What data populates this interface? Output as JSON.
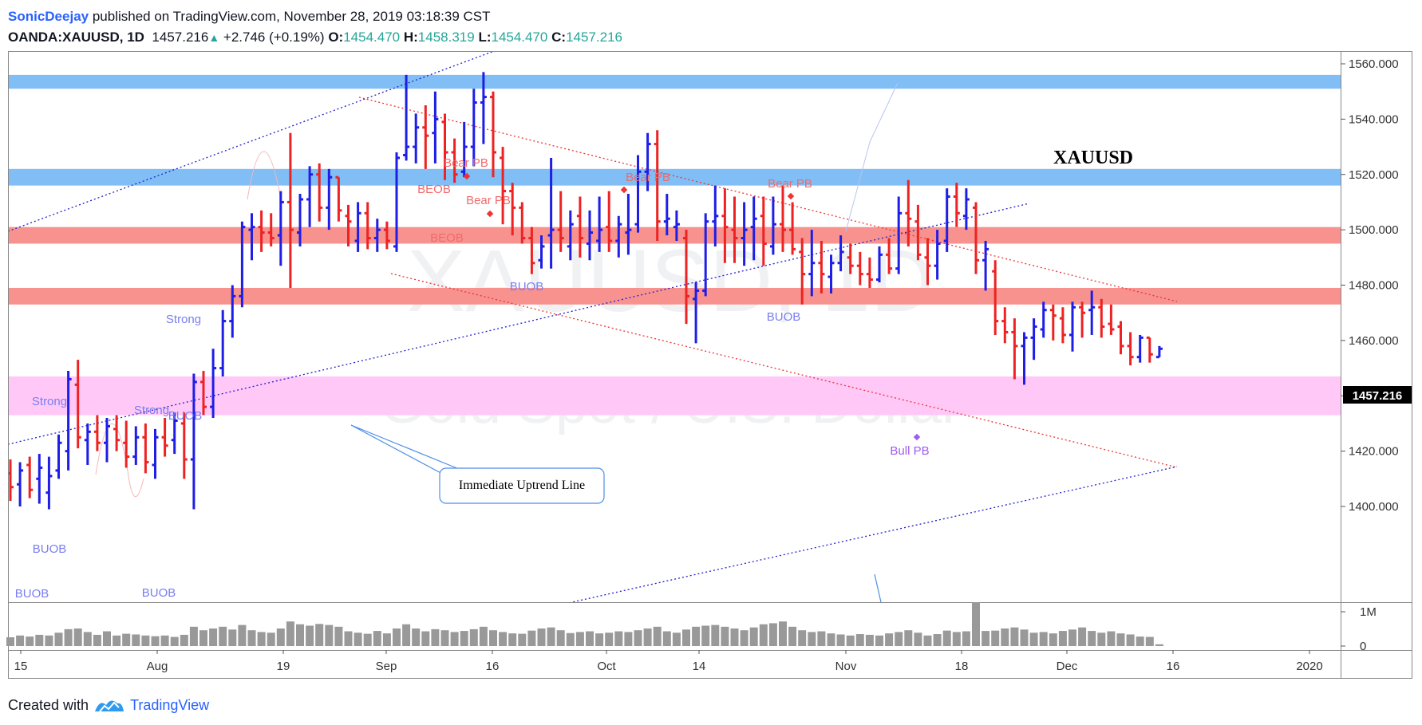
{
  "header": {
    "author": "SonicDeejay",
    "published_text": " published on TradingView.com, November 28, 2019 03:18:39 CST",
    "symbol": "OANDA:XAUUSD, 1D",
    "last": "1457.216",
    "change": "+2.746 (+0.19%)",
    "o_label": "O:",
    "o": "1454.470",
    "h_label": "H:",
    "h": "1458.319",
    "l_label": "L:",
    "l": "1454.470",
    "c_label": "C:",
    "c": "1457.216"
  },
  "footer": {
    "created_with": "Created with",
    "brand": "TradingView"
  },
  "watermark": {
    "symbol": "XAUUSD, 1D",
    "name": "Gold Spot / U.S. Dollar"
  },
  "title_label": "XAUUSD",
  "price_tag": "1457.216",
  "colors": {
    "up": "#1e1ee6",
    "down": "#ee2222",
    "blue_zone": "#80bef5",
    "red_zone": "#f7928f",
    "pink_zone": "#ffc8f7",
    "volume": "#999999"
  },
  "chart_data": {
    "type": "ohlc",
    "ylim": [
      1392,
      1567
    ],
    "yticks": [
      "1560.000",
      "1540.000",
      "1520.000",
      "1500.000",
      "1480.000",
      "1460.000",
      "1440.000",
      "1420.000",
      "1400.000"
    ],
    "xticks": [
      "15",
      "Aug",
      "19",
      "Sep",
      "16",
      "Oct",
      "14",
      "Nov",
      "18",
      "Dec",
      "16",
      "2020"
    ],
    "volume_ticks": [
      "1M",
      "0"
    ],
    "zones": [
      {
        "color": "blue",
        "from": 1551,
        "to": 1556
      },
      {
        "color": "blue",
        "from": 1516,
        "to": 1522
      },
      {
        "color": "red",
        "from": 1495,
        "to": 1501
      },
      {
        "color": "red",
        "from": 1473,
        "to": 1479
      },
      {
        "color": "pink",
        "from": 1433,
        "to": 1447
      }
    ],
    "annotations": [
      {
        "text": "Strong",
        "color": "#7a7ef0"
      },
      {
        "text": "Strong",
        "color": "#7a7ef0"
      },
      {
        "text": "Strong",
        "color": "#7a7ef0"
      },
      {
        "text": "BUOB",
        "color": "#7a7ef0"
      },
      {
        "text": "BUOB",
        "color": "#7a7ef0"
      },
      {
        "text": "BUOB",
        "color": "#7a7ef0"
      },
      {
        "text": "BUOB",
        "color": "#7a7ef0"
      },
      {
        "text": "BUOB",
        "color": "#7a7ef0"
      },
      {
        "text": "BUOB",
        "color": "#7a7ef0"
      },
      {
        "text": "BEOB",
        "color": "#f06a6a"
      },
      {
        "text": "BEOB",
        "color": "#f06a6a"
      },
      {
        "text": "Bear PB",
        "color": "#f06a6a"
      },
      {
        "text": "Bear PB",
        "color": "#f06a6a"
      },
      {
        "text": "Bear PB",
        "color": "#f06a6a"
      },
      {
        "text": "Bear PB",
        "color": "#f06a6a"
      },
      {
        "text": "Bull PB",
        "color": "#a05cf0"
      }
    ],
    "callout": "Immediate Uptrend Line",
    "bars": [
      {
        "o": 1412,
        "h": 1417,
        "l": 1402,
        "c": 1407,
        "v": 0.25
      },
      {
        "o": 1408,
        "h": 1416,
        "l": 1400,
        "c": 1413,
        "v": 0.3
      },
      {
        "o": 1415,
        "h": 1418,
        "l": 1403,
        "c": 1406,
        "v": 0.27
      },
      {
        "o": 1410,
        "h": 1419,
        "l": 1401,
        "c": 1414,
        "v": 0.32
      },
      {
        "o": 1405,
        "h": 1418,
        "l": 1399,
        "c": 1411,
        "v": 0.3
      },
      {
        "o": 1413,
        "h": 1426,
        "l": 1410,
        "c": 1423,
        "v": 0.38
      },
      {
        "o": 1420,
        "h": 1449,
        "l": 1413,
        "c": 1446,
        "v": 0.48
      },
      {
        "o": 1444,
        "h": 1453,
        "l": 1421,
        "c": 1425,
        "v": 0.5
      },
      {
        "o": 1424,
        "h": 1430,
        "l": 1415,
        "c": 1427,
        "v": 0.4
      },
      {
        "o": 1427,
        "h": 1433,
        "l": 1420,
        "c": 1423,
        "v": 0.32
      },
      {
        "o": 1423,
        "h": 1432,
        "l": 1416,
        "c": 1429,
        "v": 0.42
      },
      {
        "o": 1428,
        "h": 1433,
        "l": 1420,
        "c": 1424,
        "v": 0.3
      },
      {
        "o": 1423,
        "h": 1431,
        "l": 1414,
        "c": 1418,
        "v": 0.35
      },
      {
        "o": 1418,
        "h": 1429,
        "l": 1415,
        "c": 1425,
        "v": 0.33
      },
      {
        "o": 1425,
        "h": 1430,
        "l": 1412,
        "c": 1416,
        "v": 0.3
      },
      {
        "o": 1415,
        "h": 1428,
        "l": 1410,
        "c": 1425,
        "v": 0.28
      },
      {
        "o": 1425,
        "h": 1432,
        "l": 1418,
        "c": 1422,
        "v": 0.3
      },
      {
        "o": 1424,
        "h": 1434,
        "l": 1419,
        "c": 1431,
        "v": 0.26
      },
      {
        "o": 1430,
        "h": 1434,
        "l": 1410,
        "c": 1417,
        "v": 0.32
      },
      {
        "o": 1417,
        "h": 1448,
        "l": 1399,
        "c": 1445,
        "v": 0.55
      },
      {
        "o": 1445,
        "h": 1449,
        "l": 1433,
        "c": 1436,
        "v": 0.45
      },
      {
        "o": 1436,
        "h": 1457,
        "l": 1432,
        "c": 1450,
        "v": 0.5
      },
      {
        "o": 1450,
        "h": 1471,
        "l": 1447,
        "c": 1467,
        "v": 0.55
      },
      {
        "o": 1467,
        "h": 1480,
        "l": 1461,
        "c": 1476,
        "v": 0.47
      },
      {
        "o": 1476,
        "h": 1503,
        "l": 1472,
        "c": 1501,
        "v": 0.6
      },
      {
        "o": 1500,
        "h": 1506,
        "l": 1489,
        "c": 1501,
        "v": 0.45
      },
      {
        "o": 1501,
        "h": 1507,
        "l": 1492,
        "c": 1499,
        "v": 0.4
      },
      {
        "o": 1499,
        "h": 1506,
        "l": 1494,
        "c": 1497,
        "v": 0.38
      },
      {
        "o": 1498,
        "h": 1514,
        "l": 1487,
        "c": 1510,
        "v": 0.5
      },
      {
        "o": 1510,
        "h": 1535,
        "l": 1479,
        "c": 1500,
        "v": 0.7
      },
      {
        "o": 1499,
        "h": 1513,
        "l": 1494,
        "c": 1511,
        "v": 0.62
      },
      {
        "o": 1511,
        "h": 1523,
        "l": 1501,
        "c": 1520,
        "v": 0.58
      },
      {
        "o": 1520,
        "h": 1524,
        "l": 1503,
        "c": 1508,
        "v": 0.63
      },
      {
        "o": 1508,
        "h": 1522,
        "l": 1500,
        "c": 1519,
        "v": 0.6
      },
      {
        "o": 1519,
        "h": 1519,
        "l": 1503,
        "c": 1507,
        "v": 0.55
      },
      {
        "o": 1505,
        "h": 1509,
        "l": 1494,
        "c": 1503,
        "v": 0.42
      },
      {
        "o": 1496,
        "h": 1510,
        "l": 1492,
        "c": 1506,
        "v": 0.38
      },
      {
        "o": 1506,
        "h": 1510,
        "l": 1493,
        "c": 1497,
        "v": 0.35
      },
      {
        "o": 1497,
        "h": 1504,
        "l": 1492,
        "c": 1500,
        "v": 0.43
      },
      {
        "o": 1500,
        "h": 1503,
        "l": 1493,
        "c": 1496,
        "v": 0.36
      },
      {
        "o": 1494,
        "h": 1528,
        "l": 1492,
        "c": 1526,
        "v": 0.5
      },
      {
        "o": 1527,
        "h": 1556,
        "l": 1525,
        "c": 1530,
        "v": 0.62
      },
      {
        "o": 1530,
        "h": 1542,
        "l": 1524,
        "c": 1537,
        "v": 0.5
      },
      {
        "o": 1537,
        "h": 1545,
        "l": 1522,
        "c": 1534,
        "v": 0.42
      },
      {
        "o": 1535,
        "h": 1550,
        "l": 1524,
        "c": 1540,
        "v": 0.48
      },
      {
        "o": 1539,
        "h": 1542,
        "l": 1518,
        "c": 1528,
        "v": 0.45
      },
      {
        "o": 1528,
        "h": 1533,
        "l": 1517,
        "c": 1520,
        "v": 0.4
      },
      {
        "o": 1521,
        "h": 1539,
        "l": 1519,
        "c": 1530,
        "v": 0.43
      },
      {
        "o": 1530,
        "h": 1551,
        "l": 1523,
        "c": 1546,
        "v": 0.48
      },
      {
        "o": 1546,
        "h": 1557,
        "l": 1531,
        "c": 1548,
        "v": 0.55
      },
      {
        "o": 1548,
        "h": 1550,
        "l": 1519,
        "c": 1528,
        "v": 0.45
      },
      {
        "o": 1526,
        "h": 1530,
        "l": 1502,
        "c": 1514,
        "v": 0.4
      },
      {
        "o": 1514,
        "h": 1517,
        "l": 1498,
        "c": 1508,
        "v": 0.36
      },
      {
        "o": 1508,
        "h": 1510,
        "l": 1495,
        "c": 1497,
        "v": 0.35
      },
      {
        "o": 1497,
        "h": 1501,
        "l": 1484,
        "c": 1488,
        "v": 0.44
      },
      {
        "o": 1489,
        "h": 1498,
        "l": 1486,
        "c": 1494,
        "v": 0.5
      },
      {
        "o": 1498,
        "h": 1526,
        "l": 1486,
        "c": 1500,
        "v": 0.53
      },
      {
        "o": 1500,
        "h": 1514,
        "l": 1492,
        "c": 1497,
        "v": 0.45
      },
      {
        "o": 1494,
        "h": 1507,
        "l": 1489,
        "c": 1502,
        "v": 0.37
      },
      {
        "o": 1505,
        "h": 1512,
        "l": 1490,
        "c": 1497,
        "v": 0.4
      },
      {
        "o": 1495,
        "h": 1507,
        "l": 1489,
        "c": 1499,
        "v": 0.42
      },
      {
        "o": 1496,
        "h": 1512,
        "l": 1492,
        "c": 1500,
        "v": 0.36
      },
      {
        "o": 1501,
        "h": 1514,
        "l": 1492,
        "c": 1496,
        "v": 0.38
      },
      {
        "o": 1496,
        "h": 1505,
        "l": 1490,
        "c": 1502,
        "v": 0.42
      },
      {
        "o": 1499,
        "h": 1513,
        "l": 1491,
        "c": 1500,
        "v": 0.4
      },
      {
        "o": 1502,
        "h": 1527,
        "l": 1499,
        "c": 1521,
        "v": 0.45
      },
      {
        "o": 1521,
        "h": 1535,
        "l": 1514,
        "c": 1531,
        "v": 0.5
      },
      {
        "o": 1531,
        "h": 1536,
        "l": 1496,
        "c": 1503,
        "v": 0.55
      },
      {
        "o": 1503,
        "h": 1513,
        "l": 1498,
        "c": 1504,
        "v": 0.42
      },
      {
        "o": 1501,
        "h": 1507,
        "l": 1496,
        "c": 1502,
        "v": 0.38
      },
      {
        "o": 1497,
        "h": 1500,
        "l": 1466,
        "c": 1476,
        "v": 0.47
      },
      {
        "o": 1475,
        "h": 1481,
        "l": 1459,
        "c": 1478,
        "v": 0.55
      },
      {
        "o": 1478,
        "h": 1506,
        "l": 1476,
        "c": 1503,
        "v": 0.58
      },
      {
        "o": 1503,
        "h": 1516,
        "l": 1494,
        "c": 1505,
        "v": 0.6
      },
      {
        "o": 1505,
        "h": 1515,
        "l": 1488,
        "c": 1501,
        "v": 0.55
      },
      {
        "o": 1500,
        "h": 1512,
        "l": 1488,
        "c": 1497,
        "v": 0.5
      },
      {
        "o": 1497,
        "h": 1510,
        "l": 1487,
        "c": 1500,
        "v": 0.45
      },
      {
        "o": 1501,
        "h": 1512,
        "l": 1489,
        "c": 1504,
        "v": 0.53
      },
      {
        "o": 1505,
        "h": 1512,
        "l": 1487,
        "c": 1495,
        "v": 0.62
      },
      {
        "o": 1494,
        "h": 1512,
        "l": 1491,
        "c": 1502,
        "v": 0.65
      },
      {
        "o": 1502,
        "h": 1516,
        "l": 1492,
        "c": 1500,
        "v": 0.7
      },
      {
        "o": 1500,
        "h": 1510,
        "l": 1491,
        "c": 1493,
        "v": 0.55
      },
      {
        "o": 1492,
        "h": 1497,
        "l": 1473,
        "c": 1484,
        "v": 0.45
      },
      {
        "o": 1484,
        "h": 1500,
        "l": 1476,
        "c": 1488,
        "v": 0.4
      },
      {
        "o": 1488,
        "h": 1496,
        "l": 1477,
        "c": 1484,
        "v": 0.42
      },
      {
        "o": 1483,
        "h": 1491,
        "l": 1477,
        "c": 1488,
        "v": 0.36
      },
      {
        "o": 1488,
        "h": 1498,
        "l": 1485,
        "c": 1492,
        "v": 0.33
      },
      {
        "o": 1490,
        "h": 1495,
        "l": 1484,
        "c": 1487,
        "v": 0.3
      },
      {
        "o": 1487,
        "h": 1492,
        "l": 1480,
        "c": 1484,
        "v": 0.34
      },
      {
        "o": 1484,
        "h": 1490,
        "l": 1479,
        "c": 1482,
        "v": 0.32
      },
      {
        "o": 1482,
        "h": 1494,
        "l": 1481,
        "c": 1491,
        "v": 0.3
      },
      {
        "o": 1491,
        "h": 1497,
        "l": 1484,
        "c": 1486,
        "v": 0.36
      },
      {
        "o": 1486,
        "h": 1512,
        "l": 1484,
        "c": 1506,
        "v": 0.4
      },
      {
        "o": 1506,
        "h": 1518,
        "l": 1494,
        "c": 1504,
        "v": 0.45
      },
      {
        "o": 1503,
        "h": 1509,
        "l": 1489,
        "c": 1491,
        "v": 0.38
      },
      {
        "o": 1490,
        "h": 1497,
        "l": 1480,
        "c": 1487,
        "v": 0.3
      },
      {
        "o": 1487,
        "h": 1500,
        "l": 1482,
        "c": 1495,
        "v": 0.34
      },
      {
        "o": 1496,
        "h": 1515,
        "l": 1492,
        "c": 1512,
        "v": 0.44
      },
      {
        "o": 1512,
        "h": 1517,
        "l": 1501,
        "c": 1506,
        "v": 0.4
      },
      {
        "o": 1505,
        "h": 1515,
        "l": 1500,
        "c": 1511,
        "v": 0.42
      },
      {
        "o": 1508,
        "h": 1510,
        "l": 1484,
        "c": 1489,
        "v": 1.25
      },
      {
        "o": 1489,
        "h": 1496,
        "l": 1478,
        "c": 1493,
        "v": 0.43
      },
      {
        "o": 1485,
        "h": 1489,
        "l": 1462,
        "c": 1467,
        "v": 0.44
      },
      {
        "o": 1467,
        "h": 1472,
        "l": 1459,
        "c": 1463,
        "v": 0.5
      },
      {
        "o": 1463,
        "h": 1468,
        "l": 1446,
        "c": 1458,
        "v": 0.53
      },
      {
        "o": 1458,
        "h": 1463,
        "l": 1444,
        "c": 1461,
        "v": 0.47
      },
      {
        "o": 1461,
        "h": 1468,
        "l": 1453,
        "c": 1465,
        "v": 0.38
      },
      {
        "o": 1464,
        "h": 1474,
        "l": 1461,
        "c": 1471,
        "v": 0.4
      },
      {
        "o": 1471,
        "h": 1473,
        "l": 1460,
        "c": 1469,
        "v": 0.36
      },
      {
        "o": 1468,
        "h": 1472,
        "l": 1459,
        "c": 1462,
        "v": 0.43
      },
      {
        "o": 1462,
        "h": 1474,
        "l": 1456,
        "c": 1472,
        "v": 0.47
      },
      {
        "o": 1472,
        "h": 1474,
        "l": 1461,
        "c": 1470,
        "v": 0.53
      },
      {
        "o": 1471,
        "h": 1478,
        "l": 1462,
        "c": 1472,
        "v": 0.43
      },
      {
        "o": 1472,
        "h": 1475,
        "l": 1461,
        "c": 1465,
        "v": 0.38
      },
      {
        "o": 1466,
        "h": 1473,
        "l": 1462,
        "c": 1464,
        "v": 0.42
      },
      {
        "o": 1465,
        "h": 1467,
        "l": 1455,
        "c": 1458,
        "v": 0.36
      },
      {
        "o": 1458,
        "h": 1463,
        "l": 1451,
        "c": 1454,
        "v": 0.33
      },
      {
        "o": 1454,
        "h": 1462,
        "l": 1452,
        "c": 1461,
        "v": 0.27
      },
      {
        "o": 1461,
        "h": 1461,
        "l": 1452,
        "c": 1455,
        "v": 0.26
      },
      {
        "o": 1454,
        "h": 1458,
        "l": 1454,
        "c": 1457,
        "v": 0.05
      }
    ]
  }
}
